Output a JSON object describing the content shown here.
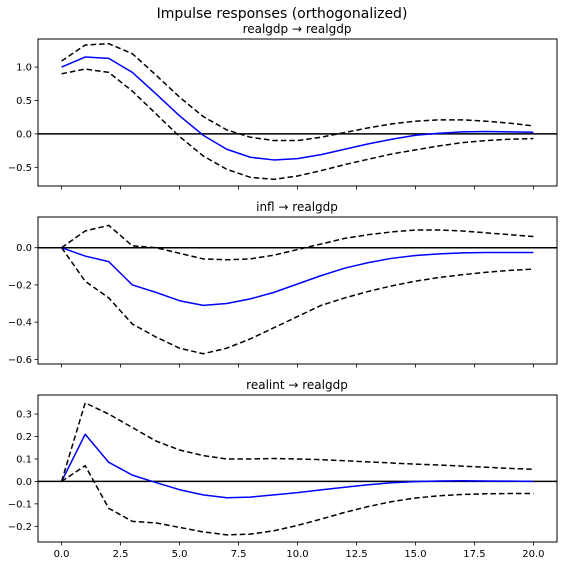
{
  "figure": {
    "suptitle": "Impulse responses (orthogonalized)"
  },
  "chart_data": [
    {
      "type": "line",
      "title": "realgdp → realgdp",
      "xlabel": "",
      "ylabel": "",
      "grid": false,
      "xlim": [
        -1,
        21
      ],
      "ylim": [
        -0.78,
        1.42
      ],
      "x_ticks": [
        0.0,
        2.5,
        5.0,
        7.5,
        10.0,
        12.5,
        15.0,
        17.5,
        20.0
      ],
      "x_tick_labels_shown": false,
      "y_ticks": [
        -0.5,
        0.0,
        0.5,
        1.0
      ],
      "y_tick_labels": [
        "−0.5",
        "0.0",
        "0.5",
        "1.0"
      ],
      "zero_line": true,
      "x": [
        0,
        1,
        2,
        3,
        4,
        5,
        6,
        7,
        8,
        9,
        10,
        11,
        12,
        13,
        14,
        15,
        16,
        17,
        18,
        19,
        20
      ],
      "series": [
        {
          "role": "irf",
          "color": "#0000ff",
          "style": "solid",
          "values": [
            1.0,
            1.15,
            1.13,
            0.92,
            0.6,
            0.27,
            -0.02,
            -0.23,
            -0.35,
            -0.39,
            -0.37,
            -0.31,
            -0.23,
            -0.15,
            -0.08,
            -0.02,
            0.01,
            0.03,
            0.035,
            0.03,
            0.025
          ]
        },
        {
          "role": "upper",
          "color": "#000000",
          "style": "dashed",
          "values": [
            1.09,
            1.33,
            1.35,
            1.2,
            0.88,
            0.55,
            0.26,
            0.06,
            -0.05,
            -0.1,
            -0.1,
            -0.05,
            0.02,
            0.09,
            0.15,
            0.19,
            0.21,
            0.21,
            0.19,
            0.16,
            0.12
          ]
        },
        {
          "role": "lower",
          "color": "#000000",
          "style": "dashed",
          "values": [
            0.9,
            0.97,
            0.92,
            0.64,
            0.3,
            -0.04,
            -0.33,
            -0.53,
            -0.65,
            -0.68,
            -0.63,
            -0.55,
            -0.46,
            -0.38,
            -0.3,
            -0.24,
            -0.18,
            -0.13,
            -0.1,
            -0.08,
            -0.07
          ]
        }
      ]
    },
    {
      "type": "line",
      "title": "infl → realgdp",
      "xlabel": "",
      "ylabel": "",
      "grid": false,
      "xlim": [
        -1,
        21
      ],
      "ylim": [
        -0.625,
        0.165
      ],
      "x_ticks": [
        0.0,
        2.5,
        5.0,
        7.5,
        10.0,
        12.5,
        15.0,
        17.5,
        20.0
      ],
      "x_tick_labels_shown": false,
      "y_ticks": [
        -0.6,
        -0.4,
        -0.2,
        0.0
      ],
      "y_tick_labels": [
        "−0.6",
        "−0.4",
        "−0.2",
        "0.0"
      ],
      "zero_line": true,
      "x": [
        0,
        1,
        2,
        3,
        4,
        5,
        6,
        7,
        8,
        9,
        10,
        11,
        12,
        13,
        14,
        15,
        16,
        17,
        18,
        19,
        20
      ],
      "series": [
        {
          "role": "irf",
          "color": "#0000ff",
          "style": "solid",
          "values": [
            0.0,
            -0.045,
            -0.075,
            -0.2,
            -0.24,
            -0.285,
            -0.31,
            -0.3,
            -0.275,
            -0.24,
            -0.195,
            -0.15,
            -0.11,
            -0.08,
            -0.057,
            -0.042,
            -0.033,
            -0.028,
            -0.026,
            -0.026,
            -0.026
          ]
        },
        {
          "role": "upper",
          "color": "#000000",
          "style": "dashed",
          "values": [
            0.0,
            0.09,
            0.12,
            0.01,
            0.0,
            -0.03,
            -0.06,
            -0.065,
            -0.06,
            -0.04,
            -0.01,
            0.02,
            0.05,
            0.07,
            0.085,
            0.095,
            0.095,
            0.09,
            0.08,
            0.07,
            0.06
          ]
        },
        {
          "role": "lower",
          "color": "#000000",
          "style": "dashed",
          "values": [
            0.0,
            -0.18,
            -0.27,
            -0.41,
            -0.48,
            -0.54,
            -0.57,
            -0.54,
            -0.49,
            -0.43,
            -0.37,
            -0.31,
            -0.27,
            -0.235,
            -0.205,
            -0.18,
            -0.16,
            -0.145,
            -0.132,
            -0.122,
            -0.115
          ]
        }
      ]
    },
    {
      "type": "line",
      "title": "realint → realgdp",
      "xlabel": "",
      "ylabel": "",
      "grid": false,
      "xlim": [
        -1,
        21
      ],
      "ylim": [
        -0.27,
        0.385
      ],
      "x_ticks": [
        0.0,
        2.5,
        5.0,
        7.5,
        10.0,
        12.5,
        15.0,
        17.5,
        20.0
      ],
      "x_tick_labels": [
        "0.0",
        "2.5",
        "5.0",
        "7.5",
        "10.0",
        "12.5",
        "15.0",
        "17.5",
        "20.0"
      ],
      "x_tick_labels_shown": true,
      "y_ticks": [
        -0.2,
        -0.1,
        0.0,
        0.1,
        0.2,
        0.3
      ],
      "y_tick_labels": [
        "−0.2",
        "−0.1",
        "0.0",
        "0.1",
        "0.2",
        "0.3"
      ],
      "zero_line": true,
      "x": [
        0,
        1,
        2,
        3,
        4,
        5,
        6,
        7,
        8,
        9,
        10,
        11,
        12,
        13,
        14,
        15,
        16,
        17,
        18,
        19,
        20
      ],
      "series": [
        {
          "role": "irf",
          "color": "#0000ff",
          "style": "solid",
          "values": [
            0.0,
            0.21,
            0.085,
            0.028,
            -0.005,
            -0.037,
            -0.06,
            -0.073,
            -0.07,
            -0.06,
            -0.05,
            -0.038,
            -0.026,
            -0.015,
            -0.006,
            -0.001,
            0.002,
            0.003,
            0.002,
            0.001,
            0.0
          ]
        },
        {
          "role": "upper",
          "color": "#000000",
          "style": "dashed",
          "values": [
            0.0,
            0.35,
            0.3,
            0.24,
            0.18,
            0.14,
            0.115,
            0.1,
            0.1,
            0.102,
            0.1,
            0.097,
            0.092,
            0.087,
            0.082,
            0.077,
            0.073,
            0.068,
            0.063,
            0.058,
            0.054
          ]
        },
        {
          "role": "lower",
          "color": "#000000",
          "style": "dashed",
          "values": [
            0.0,
            0.07,
            -0.12,
            -0.178,
            -0.185,
            -0.205,
            -0.225,
            -0.238,
            -0.235,
            -0.22,
            -0.196,
            -0.168,
            -0.138,
            -0.112,
            -0.09,
            -0.074,
            -0.064,
            -0.058,
            -0.055,
            -0.054,
            -0.054
          ]
        }
      ]
    }
  ]
}
